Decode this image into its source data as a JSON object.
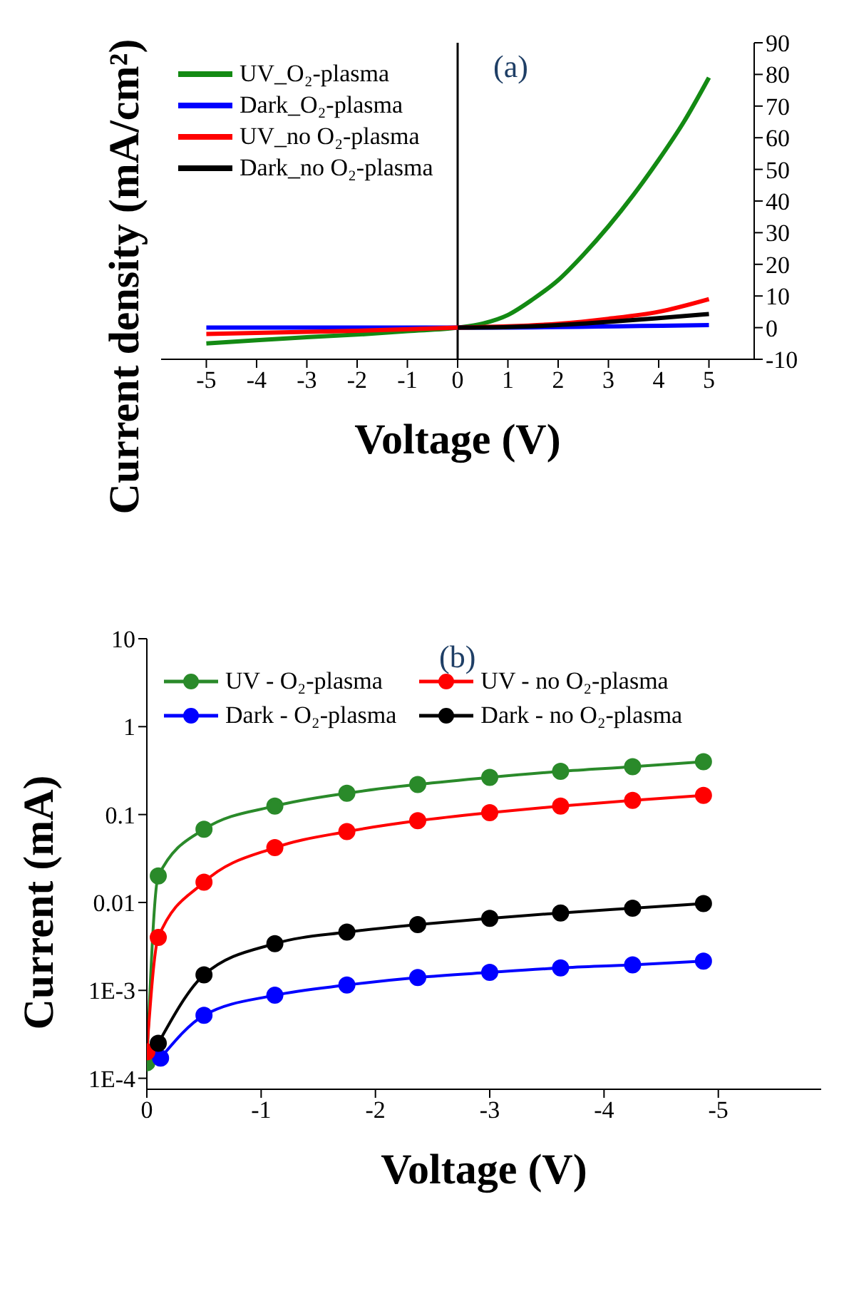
{
  "chart_data": [
    {
      "type": "line",
      "xlabel": "Voltage (V)",
      "ylabel": "Current density (mA/cm²)",
      "annotations": [
        "(a)"
      ],
      "xlim": [
        -5.9,
        5.9
      ],
      "xticks": [
        -5,
        -4,
        -3,
        -2,
        -1,
        0,
        1,
        2,
        3,
        4,
        5
      ],
      "ylim": [
        -10,
        90
      ],
      "yticks": [
        -10,
        0,
        10,
        20,
        30,
        40,
        50,
        60,
        70,
        80,
        90
      ],
      "grid": false,
      "legend": "top left",
      "marker": "none",
      "line_style": "solid",
      "ref_lines": [
        {
          "axis": "x",
          "value": 0,
          "color": "#000000"
        }
      ],
      "series": [
        {
          "name": "UV_O₂-plasma",
          "color": "#138a13",
          "x": [
            -5,
            -4,
            -3,
            -2,
            -1,
            0,
            0.5,
            1,
            1.5,
            2,
            2.5,
            3,
            3.5,
            4,
            4.5,
            5
          ],
          "values": [
            -5,
            -4,
            -3,
            -2.2,
            -1.1,
            0,
            1.3,
            4,
            9,
            15,
            23,
            32,
            42,
            53,
            65,
            79
          ]
        },
        {
          "name": "Dark_O₂-plasma",
          "color": "#0000ff",
          "x": [
            -5,
            0,
            5
          ],
          "values": [
            0,
            0,
            0.8
          ]
        },
        {
          "name": "UV_no O₂-plasma",
          "color": "#ff0000",
          "x": [
            -5,
            -2,
            0,
            1,
            2,
            3,
            4,
            5
          ],
          "values": [
            -2,
            -1,
            0,
            0.4,
            1.2,
            2.8,
            5,
            9
          ]
        },
        {
          "name": "Dark_no O₂-plasma",
          "color": "#000000",
          "x": [
            0,
            1,
            2,
            3,
            4,
            5
          ],
          "values": [
            0,
            0.2,
            0.8,
            1.8,
            3,
            4.3
          ]
        }
      ]
    },
    {
      "type": "line",
      "xlabel": "Voltage (V)",
      "ylabel": "Current (mA)",
      "annotations": [
        "(b)"
      ],
      "log": "y",
      "xlim": [
        0,
        -5.9
      ],
      "xticks": [
        0,
        -1,
        -2,
        -3,
        -4,
        -5
      ],
      "ylim": [
        7.5e-05,
        10
      ],
      "yticks": [
        {
          "value": 0.0001,
          "label": "1E-4"
        },
        {
          "value": 0.001,
          "label": "1E-3"
        },
        0.01,
        0.1,
        1,
        10
      ],
      "grid": false,
      "legend": "top",
      "marker": "circle",
      "line_style": "solid",
      "series": [
        {
          "name": "UV - O₂-plasma",
          "color": "#2a8a2a",
          "x": [
            0,
            -0.1,
            -0.5,
            -1.12,
            -1.75,
            -2.37,
            -3,
            -3.62,
            -4.25,
            -4.87
          ],
          "values": [
            0.00015,
            0.02,
            0.068,
            0.125,
            0.175,
            0.22,
            0.265,
            0.31,
            0.35,
            0.4
          ]
        },
        {
          "name": "Dark - O₂-plasma",
          "color": "#0000ff",
          "x": [
            -0.12,
            -0.5,
            -1.12,
            -1.75,
            -2.37,
            -3,
            -3.62,
            -4.25,
            -4.87
          ],
          "values": [
            0.00017,
            0.00052,
            0.00088,
            0.00115,
            0.0014,
            0.0016,
            0.0018,
            0.00195,
            0.00215
          ]
        },
        {
          "name": "UV - no O₂-plasma",
          "color": "#ff0000",
          "x": [
            0,
            -0.1,
            -0.5,
            -1.12,
            -1.75,
            -2.37,
            -3,
            -3.62,
            -4.25,
            -4.87
          ],
          "values": [
            0.0002,
            0.004,
            0.017,
            0.042,
            0.064,
            0.085,
            0.105,
            0.125,
            0.145,
            0.165
          ]
        },
        {
          "name": "Dark - no O₂-plasma",
          "color": "#000000",
          "x": [
            -0.1,
            -0.5,
            -1.12,
            -1.75,
            -2.37,
            -3,
            -3.62,
            -4.25,
            -4.87
          ],
          "values": [
            0.00025,
            0.0015,
            0.0034,
            0.0046,
            0.0056,
            0.0066,
            0.0076,
            0.0086,
            0.0097
          ]
        }
      ]
    }
  ]
}
